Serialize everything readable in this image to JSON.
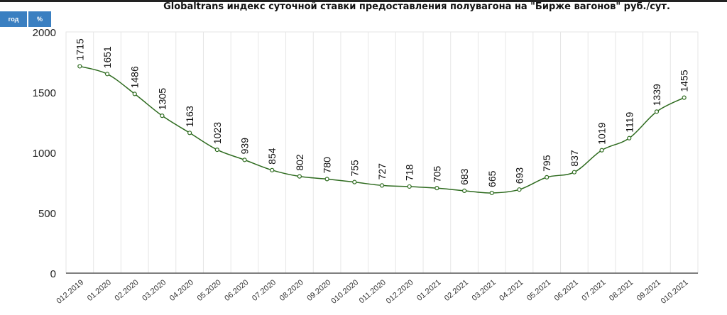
{
  "buttons": {
    "year": "год",
    "percent": "%"
  },
  "colors": {
    "line": "#2e6b1f",
    "button": "#3a7fc1",
    "grid": "#e6e6e6"
  },
  "chart_data": {
    "type": "line",
    "title": "Globaltrans индекс суточной ставки предоставления полувагона на \"Бирже вагонов\" руб./сут.",
    "xlabel": "",
    "ylabel": "",
    "ylim": [
      0,
      2000
    ],
    "yticks": [
      0,
      500,
      1000,
      1500,
      2000
    ],
    "grid": true,
    "categories": [
      "012.2019",
      "01.2020",
      "02.2020",
      "03.2020",
      "04.2020",
      "05.2020",
      "06.2020",
      "07.2020",
      "08.2020",
      "09.2020",
      "010.2020",
      "011.2020",
      "012.2020",
      "01.2021",
      "02.2021",
      "03.2021",
      "04.2021",
      "05.2021",
      "06.2021",
      "07.2021",
      "08.2021",
      "09.2021",
      "010.2021"
    ],
    "values": [
      1715,
      1651,
      1486,
      1305,
      1163,
      1023,
      939,
      854,
      802,
      780,
      755,
      727,
      718,
      705,
      683,
      665,
      693,
      795,
      837,
      1019,
      1119,
      1339,
      1455
    ]
  }
}
